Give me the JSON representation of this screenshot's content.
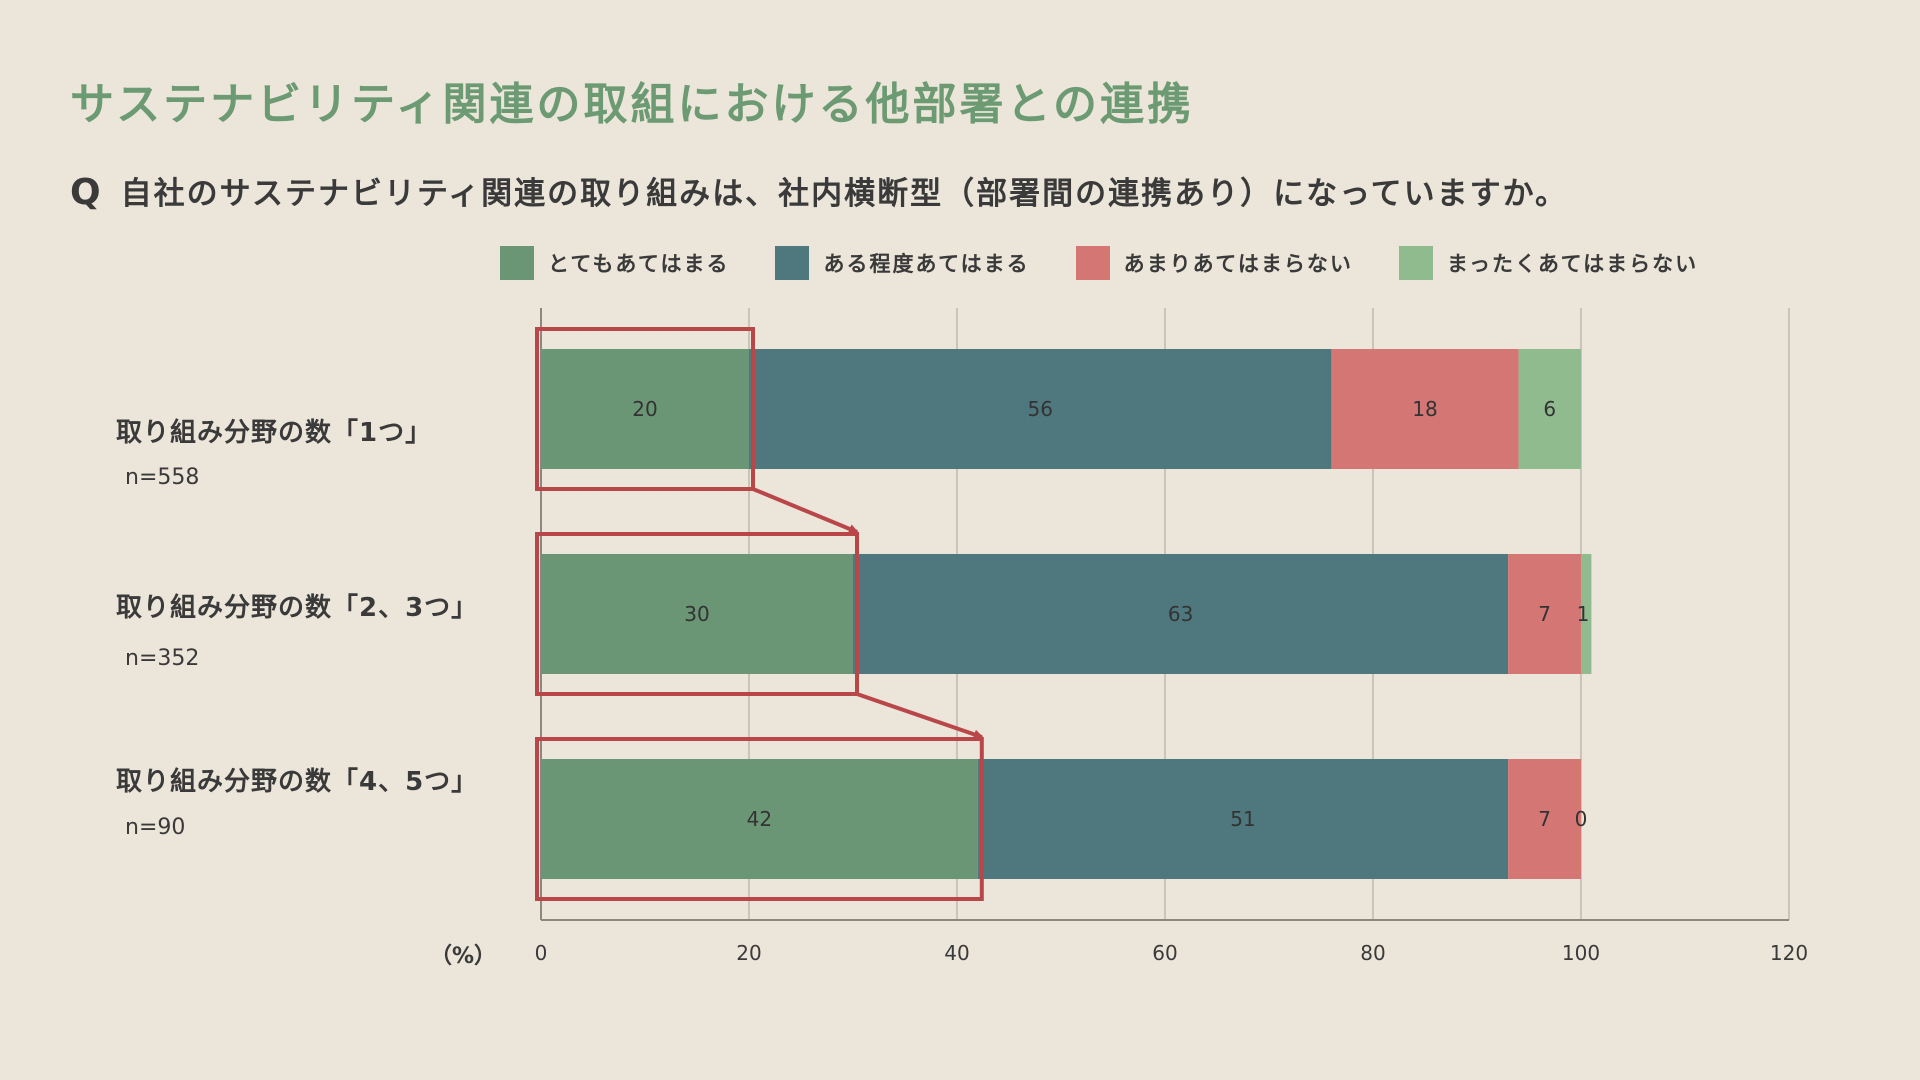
{
  "title": "サステナビリティ関連の取組における他部署との連携",
  "question": {
    "mark": "Q",
    "text": "自社のサステナビリティ関連の取り組みは、社内横断型（部署間の連携あり）になっていますか。"
  },
  "colors": {
    "background": "#ece5da",
    "title": "#6c9a72",
    "highlight_box": "#b9474a"
  },
  "chart_data": {
    "type": "bar",
    "orientation": "horizontal",
    "stacked": true,
    "x_unit_label": "（%）",
    "xlim": [
      0,
      120
    ],
    "x_ticks": [
      0,
      20,
      40,
      60,
      80,
      100,
      120
    ],
    "grid": true,
    "legend_position": "top",
    "categories": [
      {
        "label": "取り組み分野の数「1つ」",
        "n": "n=558"
      },
      {
        "label": "取り組み分野の数「2、3つ」",
        "n": "n=352"
      },
      {
        "label": "取り組み分野の数「4、5つ」",
        "n": "n=90"
      }
    ],
    "series": [
      {
        "name": "とてもあてはまる",
        "color": "#6a9676",
        "values": [
          20,
          30,
          42
        ]
      },
      {
        "name": "ある程度あてはまる",
        "color": "#4f787e",
        "values": [
          56,
          63,
          51
        ]
      },
      {
        "name": "あまりあてはまらない",
        "color": "#d47674",
        "values": [
          18,
          7,
          7
        ]
      },
      {
        "name": "まったくあてはまらない",
        "color": "#8fbb8f",
        "values": [
          6,
          1,
          0
        ]
      }
    ],
    "highlight": {
      "series_index": 0,
      "arrows_between_rows": true
    }
  }
}
